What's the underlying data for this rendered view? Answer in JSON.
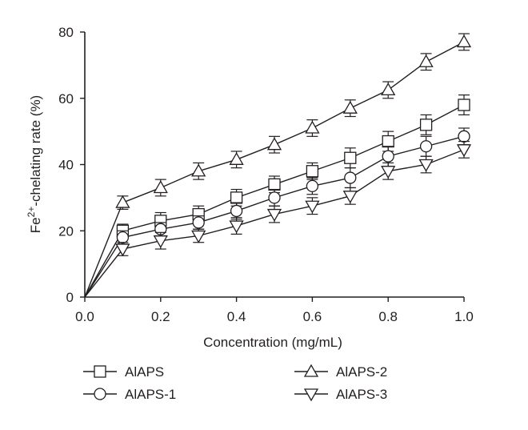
{
  "chart_data": {
    "type": "line",
    "title": "",
    "xlabel": "Concentration (mg/mL)",
    "ylabel_parts": [
      "Fe",
      "2+",
      "-chelating rate (%)"
    ],
    "xlim": [
      0.0,
      1.0
    ],
    "ylim": [
      0,
      80
    ],
    "xticks": [
      "0.0",
      "0.2",
      "0.4",
      "0.6",
      "0.8",
      "1.0"
    ],
    "yticks": [
      "0",
      "20",
      "40",
      "60",
      "80"
    ],
    "x": [
      0.0,
      0.1,
      0.2,
      0.3,
      0.4,
      0.5,
      0.6,
      0.7,
      0.8,
      0.9,
      1.0
    ],
    "grid": false,
    "legend_position": "bottom",
    "series": [
      {
        "name": "AlAPS",
        "marker": "square",
        "values": [
          0,
          20,
          23,
          25,
          30,
          34,
          38,
          42,
          47,
          52,
          58
        ],
        "errors": [
          0,
          2.0,
          2.5,
          2.5,
          2.5,
          2.5,
          2.5,
          3.0,
          3.0,
          3.0,
          3.0
        ]
      },
      {
        "name": "AlAPS-1",
        "marker": "circle",
        "values": [
          0,
          18,
          20.5,
          22.5,
          26,
          30,
          33.5,
          36,
          42.5,
          45.5,
          48.5
        ],
        "errors": [
          0,
          2.0,
          2.0,
          2.0,
          2.5,
          2.5,
          2.5,
          3.0,
          3.0,
          3.0,
          2.5
        ]
      },
      {
        "name": "AlAPS-2",
        "marker": "triangle-up",
        "values": [
          0,
          28.5,
          33,
          38,
          41.5,
          46,
          51,
          57,
          62.5,
          71,
          77
        ],
        "errors": [
          0,
          2.0,
          2.5,
          2.5,
          2.5,
          2.5,
          2.5,
          2.5,
          2.5,
          2.5,
          2.5
        ]
      },
      {
        "name": "AlAPS-3",
        "marker": "triangle-down",
        "values": [
          0,
          14.5,
          17,
          18.5,
          21.5,
          25,
          27.5,
          30.5,
          38,
          40,
          44.5
        ],
        "errors": [
          0,
          2.0,
          2.5,
          2.0,
          2.5,
          2.5,
          2.5,
          2.5,
          2.5,
          2.5,
          2.5
        ]
      }
    ]
  }
}
